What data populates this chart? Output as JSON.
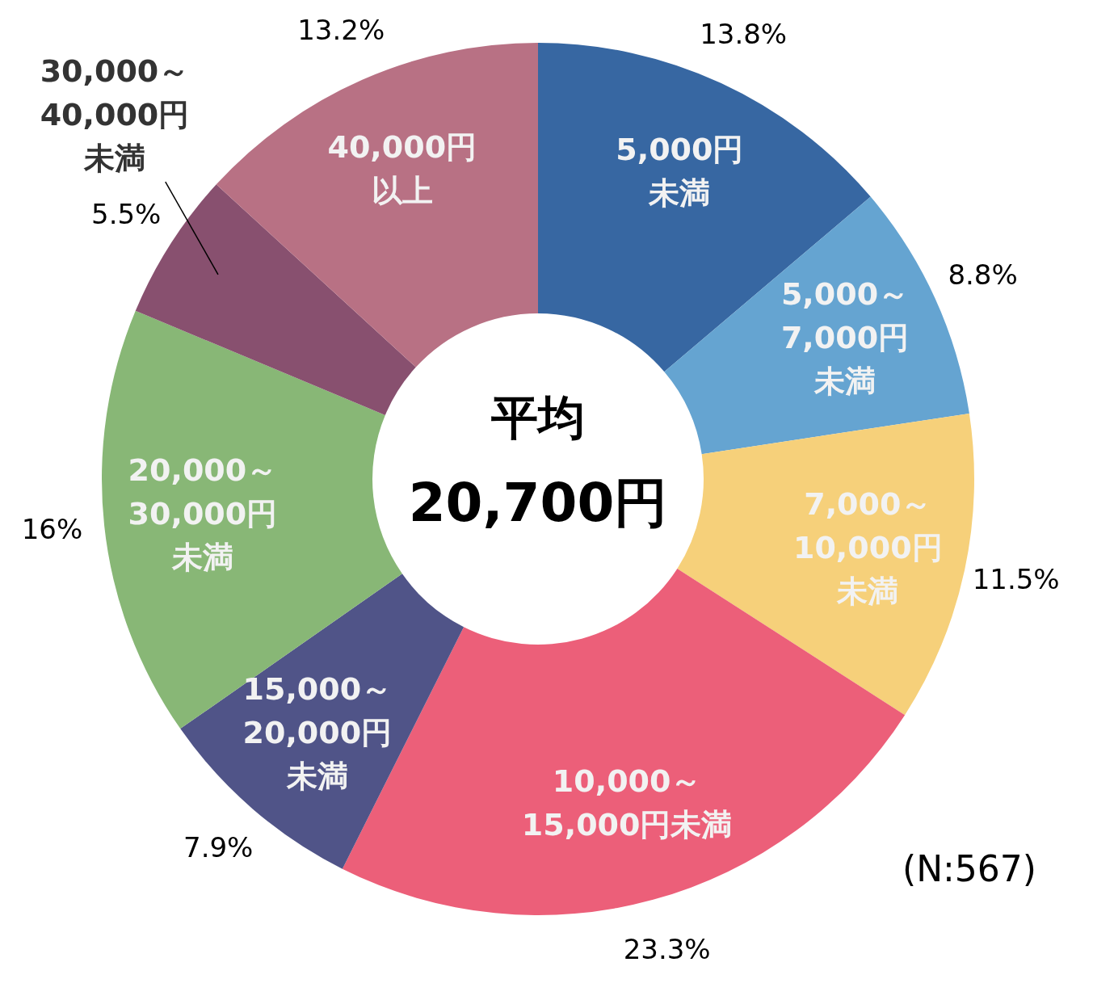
{
  "chart_data": {
    "type": "donut",
    "categories": [
      "5,000円未満",
      "5,000～7,000円未満",
      "7,000～10,000円未満",
      "10,000～15,000円未満",
      "15,000～20,000円未満",
      "20,000～30,000円未満",
      "30,000～40,000円未満",
      "40,000円以上"
    ],
    "values": [
      13.8,
      8.8,
      11.5,
      23.3,
      7.9,
      16,
      5.5,
      13.2
    ],
    "colors": [
      "#3767a2",
      "#65a4d1",
      "#f6d07a",
      "#ec5f79",
      "#505488",
      "#88b776",
      "#88506f",
      "#b87184"
    ],
    "value_labels": [
      "13.8%",
      "8.8%",
      "11.5%",
      "23.3%",
      "7.9%",
      "16%",
      "5.5%",
      "13.2%"
    ],
    "annotations": [
      "平均",
      "20,700円",
      "(N:567)"
    ]
  }
}
